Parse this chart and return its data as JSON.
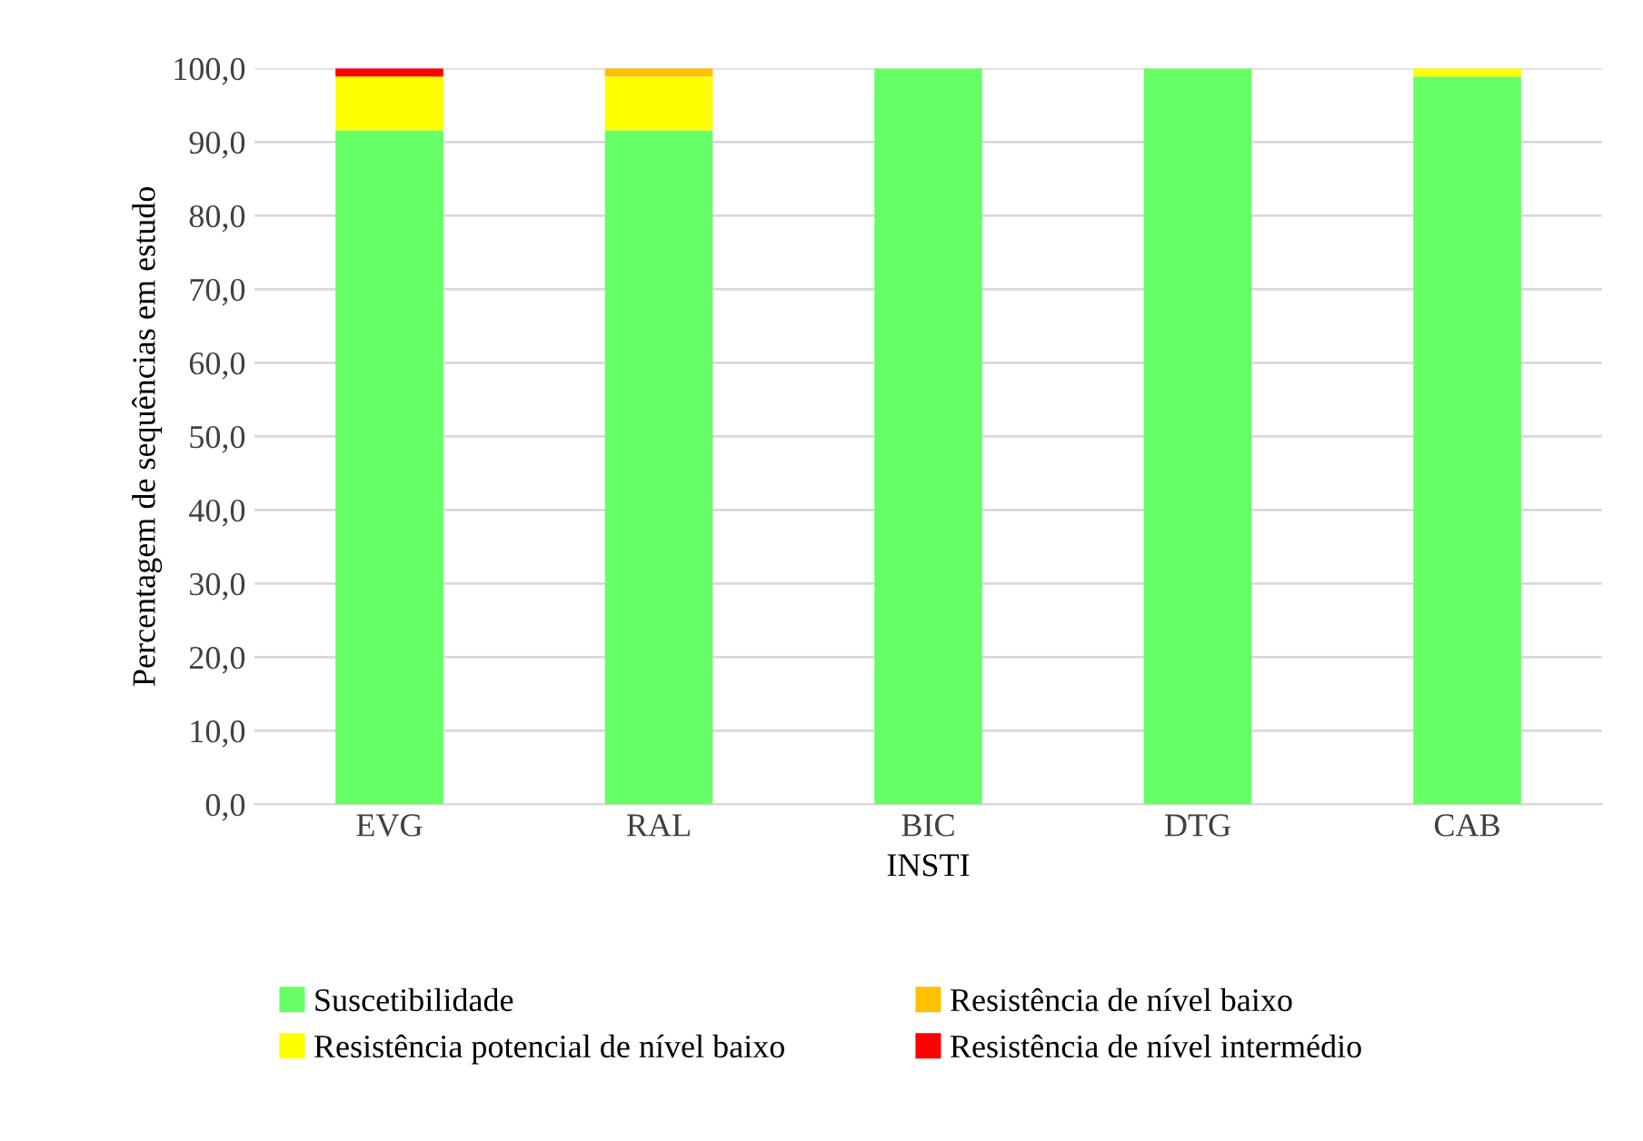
{
  "chart_data": {
    "type": "bar",
    "stacked": true,
    "xlabel": "INSTI",
    "ylabel": "Percentagem de sequências em estudo",
    "categories": [
      "EVG",
      "RAL",
      "BIC",
      "DTG",
      "CAB"
    ],
    "series": [
      {
        "name": "Suscetibilidade",
        "color": "#66ff66",
        "values": [
          91.6,
          91.6,
          100,
          100,
          98.9
        ]
      },
      {
        "name": "Resistência potencial de nível baixo",
        "color": "#ffff00",
        "values": [
          7.3,
          7.3,
          0,
          0,
          1.1
        ]
      },
      {
        "name": "Resistência de nível baixo",
        "color": "#ffc000",
        "values": [
          0,
          1.1,
          0,
          0,
          0
        ]
      },
      {
        "name": "Resistência de nível intermédio",
        "color": "#ff0000",
        "values": [
          1.1,
          0,
          0,
          0,
          0
        ]
      }
    ],
    "ylim": [
      0,
      100
    ],
    "yticks": [
      {
        "value": 0,
        "label": "0,0"
      },
      {
        "value": 10,
        "label": "10,0"
      },
      {
        "value": 20,
        "label": "20,0"
      },
      {
        "value": 30,
        "label": "30,0"
      },
      {
        "value": 40,
        "label": "40,0"
      },
      {
        "value": 50,
        "label": "50,0"
      },
      {
        "value": 60,
        "label": "60,0"
      },
      {
        "value": 70,
        "label": "70,0"
      },
      {
        "value": 80,
        "label": "80,0"
      },
      {
        "value": 90,
        "label": "90,0"
      },
      {
        "value": 100,
        "label": "100,0"
      }
    ],
    "grid": "y",
    "legend": "bottom"
  }
}
